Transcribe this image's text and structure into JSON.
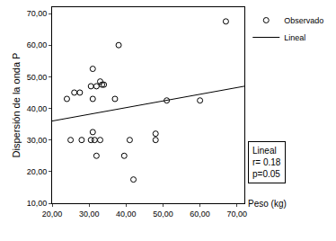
{
  "chart_data": {
    "type": "scatter",
    "x_label": "Peso (kg)",
    "y_label": "Dispersión de la onda P",
    "xlim": [
      20,
      72
    ],
    "ylim": [
      10,
      72
    ],
    "xticks": [
      {
        "value": 20,
        "label": "20,00"
      },
      {
        "value": 30,
        "label": "30,00"
      },
      {
        "value": 40,
        "label": "40,00"
      },
      {
        "value": 50,
        "label": "50,00"
      },
      {
        "value": 60,
        "label": "60,00"
      },
      {
        "value": 70,
        "label": "70,00"
      }
    ],
    "yticks": [
      {
        "value": 10,
        "label": "10,00"
      },
      {
        "value": 20,
        "label": "20,00"
      },
      {
        "value": 30,
        "label": "30,00"
      },
      {
        "value": 40,
        "label": "40,00"
      },
      {
        "value": 50,
        "label": "50,00"
      },
      {
        "value": 60,
        "label": "60,00"
      },
      {
        "value": 70,
        "label": "70,00"
      }
    ],
    "grid": false,
    "legend": "top right",
    "annotation": [
      "Lineal",
      "r= 0.18",
      "p=0.05"
    ],
    "series": [
      {
        "name": "Observado",
        "type": "scatter",
        "marker": "circle-open",
        "color": "#000000",
        "x": [
          24,
          25,
          26,
          27.5,
          28,
          30.5,
          30.5,
          31,
          31,
          31,
          31.5,
          32,
          32,
          33,
          33,
          33.5,
          34,
          37,
          38,
          39.5,
          41,
          42,
          48,
          48,
          51,
          60,
          67
        ],
        "values": [
          43,
          30,
          45,
          45,
          30,
          47,
          30,
          52.5,
          43,
          32.5,
          30,
          47,
          25,
          48.5,
          30,
          47.5,
          47.5,
          43,
          60,
          25,
          30,
          17.5,
          32,
          30,
          42.5,
          42.5,
          67.5
        ]
      },
      {
        "name": "Lineal",
        "type": "line",
        "line_style": "solid",
        "color": "#000000",
        "x": [
          20,
          72
        ],
        "values": [
          36,
          47
        ]
      }
    ]
  }
}
